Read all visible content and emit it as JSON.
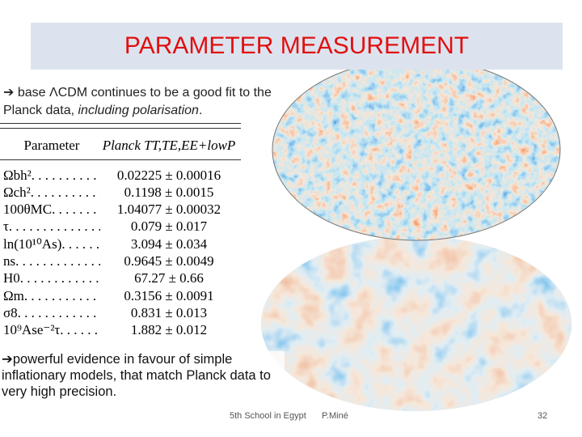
{
  "header": {
    "title": "PARAMETER MEASUREMENT"
  },
  "bullets": [
    {
      "parts": [
        "base ΛCDM continues to be a good fit to the Planck data, ",
        "including polarisation",
        "."
      ]
    },
    {
      "text": "powerful evidence in favour of simple inflationary models, that match Planck data to very high precision."
    }
  ],
  "table": {
    "header": [
      "Parameter",
      "Planck TT,TE,EE+lowP"
    ],
    "rows": [
      [
        "Ωbh²",
        "0.02225 ± 0.00016"
      ],
      [
        "Ωch²",
        "0.1198 ± 0.0015"
      ],
      [
        "100θMC",
        "1.04077 ± 0.00032"
      ],
      [
        "τ",
        "0.079 ± 0.017"
      ],
      [
        "ln(10¹⁰As)",
        "3.094 ± 0.034"
      ],
      [
        "ns",
        "0.9645 ± 0.0049"
      ],
      [
        "H0",
        "67.27 ± 0.66"
      ],
      [
        "Ωm",
        "0.3156 ± 0.0091"
      ],
      [
        "σ8",
        "0.831 ± 0.013"
      ],
      [
        "10⁹Ase⁻²τ",
        "1.882 ± 0.012"
      ]
    ]
  },
  "footer": {
    "event": "5th School in Egypt",
    "author": "P.Miné",
    "page": "32"
  }
}
